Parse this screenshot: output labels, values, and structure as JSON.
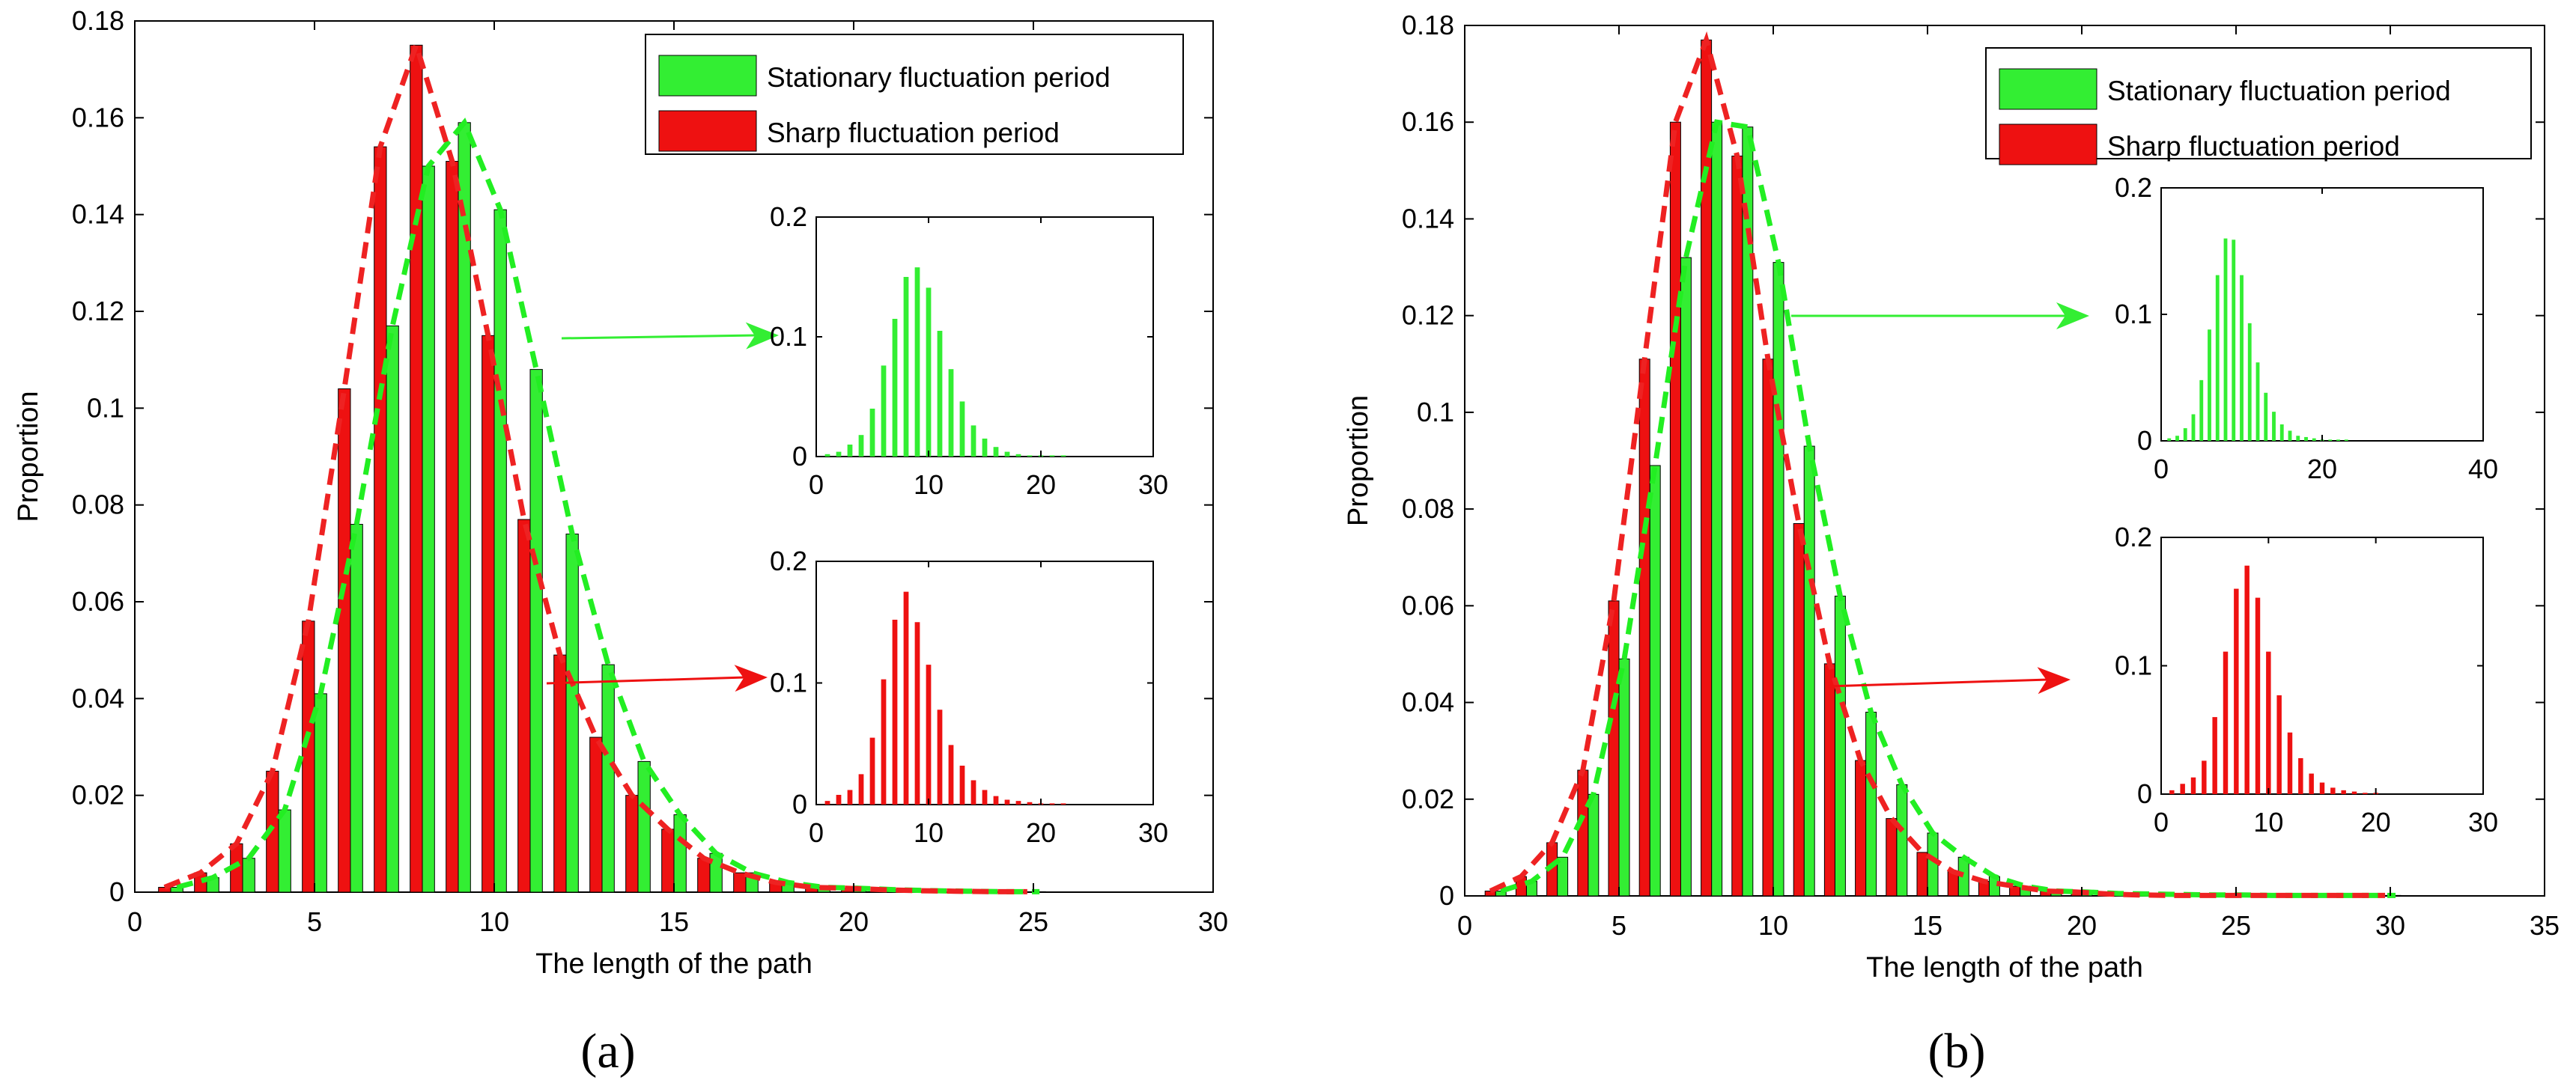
{
  "colors": {
    "green": "#33ee33",
    "red": "#ee1111",
    "green_line": "#22ee22",
    "red_line": "#ee2222"
  },
  "chart_data": [
    {
      "type": "bar",
      "panel_label": "(a)",
      "xlabel": "The length of the path",
      "ylabel": "Proportion",
      "xlim": [
        0,
        30
      ],
      "ylim": [
        0,
        0.18
      ],
      "xticks": [
        "0",
        "5",
        "10",
        "15",
        "20",
        "25",
        "30"
      ],
      "yticks": [
        "0",
        "0.02",
        "0.04",
        "0.06",
        "0.08",
        "0.1",
        "0.12",
        "0.14",
        "0.16",
        "0.18"
      ],
      "legend": {
        "position": "top-right",
        "entries": [
          "Stationary fluctuation period",
          "Sharp fluctuation period"
        ]
      },
      "series": [
        {
          "name": "Stationary fluctuation period",
          "x": [
            1,
            2,
            3,
            4,
            5,
            6,
            7,
            8,
            9,
            10,
            11,
            12,
            13,
            14,
            15,
            16,
            17,
            18,
            19,
            20,
            21,
            22,
            23,
            24,
            25
          ],
          "values": [
            0.001,
            0.003,
            0.007,
            0.017,
            0.041,
            0.076,
            0.117,
            0.15,
            0.159,
            0.141,
            0.108,
            0.074,
            0.047,
            0.027,
            0.016,
            0.008,
            0.004,
            0.002,
            0.001,
            0.0008,
            0.0005,
            0.0003,
            0.0002,
            0.0001,
            0.0001
          ]
        },
        {
          "name": "Sharp fluctuation period",
          "x": [
            1,
            2,
            3,
            4,
            5,
            6,
            7,
            8,
            9,
            10,
            11,
            12,
            13,
            14,
            15,
            16,
            17,
            18,
            19,
            20,
            21,
            22,
            23,
            24,
            25
          ],
          "values": [
            0.001,
            0.004,
            0.01,
            0.025,
            0.056,
            0.104,
            0.154,
            0.175,
            0.151,
            0.115,
            0.077,
            0.049,
            0.032,
            0.02,
            0.013,
            0.007,
            0.004,
            0.002,
            0.001,
            0.0008,
            0.0005,
            0.0003,
            0.0002,
            0.0001,
            0.0001
          ]
        }
      ],
      "insets": [
        {
          "series": "Stationary fluctuation period",
          "xlim": [
            0,
            30
          ],
          "ylim": [
            0,
            0.2
          ],
          "xticks": [
            "0",
            "10",
            "20",
            "30"
          ],
          "yticks": [
            "0",
            "0.1",
            "0.2"
          ],
          "x": [
            1,
            2,
            3,
            4,
            5,
            6,
            7,
            8,
            9,
            10,
            11,
            12,
            13,
            14,
            15,
            16,
            17,
            18,
            19,
            20,
            21,
            22
          ],
          "values": [
            0.002,
            0.004,
            0.01,
            0.018,
            0.04,
            0.076,
            0.115,
            0.15,
            0.158,
            0.141,
            0.105,
            0.073,
            0.046,
            0.026,
            0.015,
            0.008,
            0.004,
            0.002,
            0.001,
            0.001,
            0.001,
            0.001
          ]
        },
        {
          "series": "Sharp fluctuation period",
          "xlim": [
            0,
            30
          ],
          "ylim": [
            0,
            0.2
          ],
          "xticks": [
            "0",
            "10",
            "20",
            "30"
          ],
          "yticks": [
            "0",
            "0.1",
            "0.2"
          ],
          "x": [
            1,
            2,
            3,
            4,
            5,
            6,
            7,
            8,
            9,
            10,
            11,
            12,
            13,
            14,
            15,
            16,
            17,
            18,
            19,
            20,
            21,
            22
          ],
          "values": [
            0.003,
            0.008,
            0.012,
            0.025,
            0.055,
            0.103,
            0.152,
            0.175,
            0.15,
            0.115,
            0.078,
            0.049,
            0.032,
            0.02,
            0.012,
            0.007,
            0.004,
            0.003,
            0.002,
            0.001,
            0.001,
            0.001
          ]
        }
      ]
    },
    {
      "type": "bar",
      "panel_label": "(b)",
      "xlabel": "The length of the path",
      "ylabel": "Proportion",
      "xlim": [
        0,
        35
      ],
      "ylim": [
        0,
        0.18
      ],
      "xticks": [
        "0",
        "5",
        "10",
        "15",
        "20",
        "25",
        "30",
        "35"
      ],
      "yticks": [
        "0",
        "0.02",
        "0.04",
        "0.06",
        "0.08",
        "0.1",
        "0.12",
        "0.14",
        "0.16",
        "0.18"
      ],
      "legend": {
        "position": "top-right",
        "entries": [
          "Stationary fluctuation period",
          "Sharp fluctuation period"
        ]
      },
      "series": [
        {
          "name": "Stationary fluctuation period",
          "x": [
            1,
            2,
            3,
            4,
            5,
            6,
            7,
            8,
            9,
            10,
            11,
            12,
            13,
            14,
            15,
            16,
            17,
            18,
            19,
            20,
            21,
            22,
            23,
            24,
            25,
            26,
            27,
            28,
            29,
            30
          ],
          "values": [
            0.001,
            0.003,
            0.008,
            0.021,
            0.049,
            0.089,
            0.132,
            0.16,
            0.159,
            0.131,
            0.093,
            0.062,
            0.038,
            0.023,
            0.013,
            0.008,
            0.004,
            0.002,
            0.001,
            0.0008,
            0.0005,
            0.0004,
            0.0003,
            0.0002,
            0.0002,
            0.0001,
            0.0001,
            0.0001,
            0.0001,
            0.0001
          ]
        },
        {
          "name": "Sharp fluctuation period",
          "x": [
            1,
            2,
            3,
            4,
            5,
            6,
            7,
            8,
            9,
            10,
            11,
            12,
            13,
            14,
            15,
            16,
            17,
            18,
            19,
            20,
            21,
            22,
            23,
            24,
            25,
            26,
            27,
            28,
            29,
            30
          ],
          "values": [
            0.001,
            0.004,
            0.011,
            0.026,
            0.061,
            0.111,
            0.16,
            0.177,
            0.153,
            0.111,
            0.077,
            0.048,
            0.028,
            0.016,
            0.009,
            0.005,
            0.003,
            0.002,
            0.001,
            0.0008,
            0.0004,
            0.0002,
            0.0001,
            0.0001,
            0.0001,
            0.0001,
            0.0001,
            0.0001,
            0.0001,
            0.0001
          ]
        }
      ],
      "insets": [
        {
          "series": "Stationary fluctuation period",
          "xlim": [
            0,
            40
          ],
          "ylim": [
            0,
            0.2
          ],
          "xticks": [
            "0",
            "20",
            "40"
          ],
          "yticks": [
            "0",
            "0.1",
            "0.2"
          ],
          "x": [
            1,
            2,
            3,
            4,
            5,
            6,
            7,
            8,
            9,
            10,
            11,
            12,
            13,
            14,
            15,
            16,
            17,
            18,
            19,
            20,
            21,
            22,
            23
          ],
          "values": [
            0.002,
            0.004,
            0.01,
            0.021,
            0.048,
            0.088,
            0.131,
            0.16,
            0.159,
            0.131,
            0.093,
            0.062,
            0.038,
            0.023,
            0.013,
            0.008,
            0.004,
            0.003,
            0.002,
            0.001,
            0.001,
            0.001,
            0.001
          ]
        },
        {
          "series": "Sharp fluctuation period",
          "xlim": [
            0,
            30
          ],
          "ylim": [
            0,
            0.2
          ],
          "xticks": [
            "0",
            "10",
            "20",
            "30"
          ],
          "yticks": [
            "0",
            "0.1",
            "0.2"
          ],
          "x": [
            1,
            2,
            3,
            4,
            5,
            6,
            7,
            8,
            9,
            10,
            11,
            12,
            13,
            14,
            15,
            16,
            17,
            18,
            19,
            20
          ],
          "values": [
            0.003,
            0.008,
            0.013,
            0.026,
            0.06,
            0.111,
            0.16,
            0.178,
            0.153,
            0.111,
            0.077,
            0.048,
            0.028,
            0.016,
            0.009,
            0.005,
            0.003,
            0.002,
            0.001,
            0.001
          ]
        }
      ]
    }
  ]
}
